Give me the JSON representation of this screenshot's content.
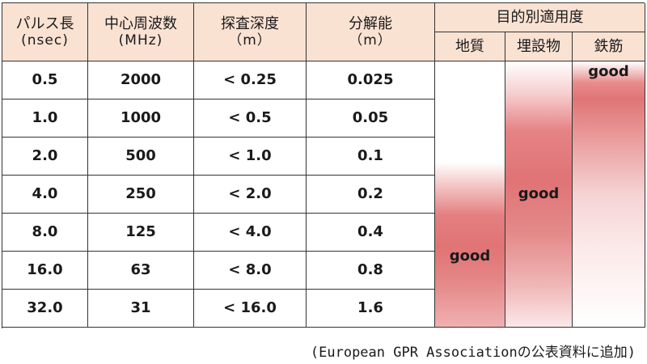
{
  "headers": {
    "pulse": {
      "label": "パルス長",
      "unit": "(nsec)"
    },
    "freq": {
      "label": "中心周波数",
      "unit": "(MHz)"
    },
    "depth": {
      "label": "探査深度",
      "unit": "（m）"
    },
    "resolution": {
      "label": "分解能",
      "unit": "（m）"
    },
    "purpose": {
      "label": "目的別適用度"
    },
    "purpose_cols": [
      "地質",
      "埋設物",
      "鉄筋"
    ]
  },
  "rows": [
    {
      "pulse": "0.5",
      "freq": "2000",
      "depth": "< 0.25",
      "resolution": "0.025"
    },
    {
      "pulse": "1.0",
      "freq": "1000",
      "depth": "< 0.5",
      "resolution": "0.05"
    },
    {
      "pulse": "2.0",
      "freq": "500",
      "depth": "< 1.0",
      "resolution": "0.1"
    },
    {
      "pulse": "4.0",
      "freq": "250",
      "depth": "< 2.0",
      "resolution": "0.2"
    },
    {
      "pulse": "8.0",
      "freq": "125",
      "depth": "< 4.0",
      "resolution": "0.4"
    },
    {
      "pulse": "16.0",
      "freq": "63",
      "depth": "< 8.0",
      "resolution": "0.8"
    },
    {
      "pulse": "32.0",
      "freq": "31",
      "depth": "< 16.0",
      "resolution": "1.6"
    }
  ],
  "suitability": {
    "chishitsu": "good",
    "maisetsu": "good",
    "tekkin": "good"
  },
  "colors": {
    "header_bg": "#fae2d3",
    "good": "#e07474"
  },
  "caption": "(European GPR Associationの公表資料に追加)"
}
